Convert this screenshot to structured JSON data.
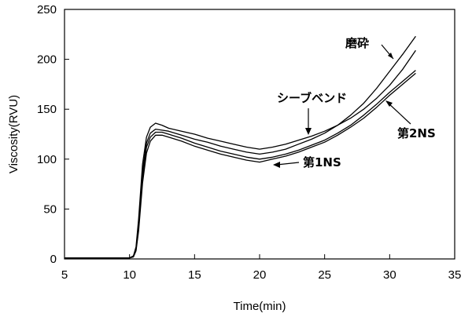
{
  "chart_data": {
    "type": "line",
    "title": "",
    "xlabel": "Time(min)",
    "ylabel": "Viscosity(RVU)",
    "xlim": [
      5,
      35
    ],
    "ylim": [
      0,
      250
    ],
    "xticks": [
      5,
      10,
      15,
      20,
      25,
      30,
      35
    ],
    "yticks": [
      0,
      50,
      100,
      150,
      200,
      250
    ],
    "grid": false,
    "legend": "none",
    "series": [
      {
        "name": "シーブベンド",
        "x": [
          5,
          10,
          10.3,
          10.5,
          10.7,
          11,
          11.3,
          11.6,
          12,
          12.5,
          13,
          14,
          15,
          16,
          17,
          18,
          19,
          20,
          21,
          22,
          23,
          24,
          25,
          26,
          27,
          28,
          29,
          30,
          31,
          32
        ],
        "y": [
          1,
          1,
          3,
          12,
          40,
          95,
          122,
          132,
          136,
          134,
          131,
          128,
          125,
          121,
          118,
          115,
          112,
          110,
          112,
          115,
          119,
          123,
          128,
          134,
          141,
          150,
          161,
          174,
          190,
          209
        ]
      },
      {
        "name": "磨砕",
        "x": [
          5,
          10,
          10.3,
          10.5,
          10.7,
          11,
          11.3,
          11.6,
          12,
          12.5,
          13,
          14,
          15,
          16,
          17,
          18,
          19,
          20,
          21,
          22,
          23,
          24,
          25,
          26,
          27,
          28,
          29,
          30,
          31,
          32
        ],
        "y": [
          1,
          1,
          3,
          10,
          35,
          88,
          116,
          126,
          130,
          129,
          128,
          124,
          120,
          117,
          113,
          110,
          107,
          105,
          107,
          110,
          115,
          120,
          126,
          134,
          144,
          156,
          171,
          188,
          205,
          223
        ]
      },
      {
        "name": "第2NS",
        "x": [
          5,
          10,
          10.3,
          10.5,
          10.7,
          11,
          11.3,
          11.6,
          12,
          12.5,
          13,
          14,
          15,
          16,
          17,
          18,
          19,
          20,
          21,
          22,
          23,
          24,
          25,
          26,
          27,
          28,
          29,
          30,
          31,
          32
        ],
        "y": [
          1,
          1,
          3,
          9,
          32,
          82,
          112,
          122,
          127,
          127,
          125,
          121,
          116,
          112,
          108,
          105,
          102,
          100,
          102,
          105,
          109,
          114,
          119,
          126,
          134,
          144,
          155,
          167,
          178,
          189
        ]
      },
      {
        "name": "第1NS",
        "x": [
          5,
          10,
          10.3,
          10.5,
          10.7,
          11,
          11.3,
          11.6,
          12,
          12.5,
          13,
          14,
          15,
          16,
          17,
          18,
          19,
          20,
          21,
          22,
          23,
          24,
          25,
          26,
          27,
          28,
          29,
          30,
          31,
          32
        ],
        "y": [
          1,
          1,
          2,
          8,
          28,
          76,
          106,
          118,
          124,
          124,
          122,
          118,
          113,
          109,
          105,
          102,
          99,
          97,
          100,
          103,
          107,
          112,
          117,
          124,
          132,
          141,
          152,
          164,
          175,
          186
        ]
      }
    ],
    "annotations": [
      {
        "text": "磨砕",
        "series": "磨砕"
      },
      {
        "text": "シーブベンド",
        "series": "シーブベンド"
      },
      {
        "text": "第2NS",
        "series": "第2NS"
      },
      {
        "text": "第1NS",
        "series": "第1NS"
      }
    ]
  }
}
